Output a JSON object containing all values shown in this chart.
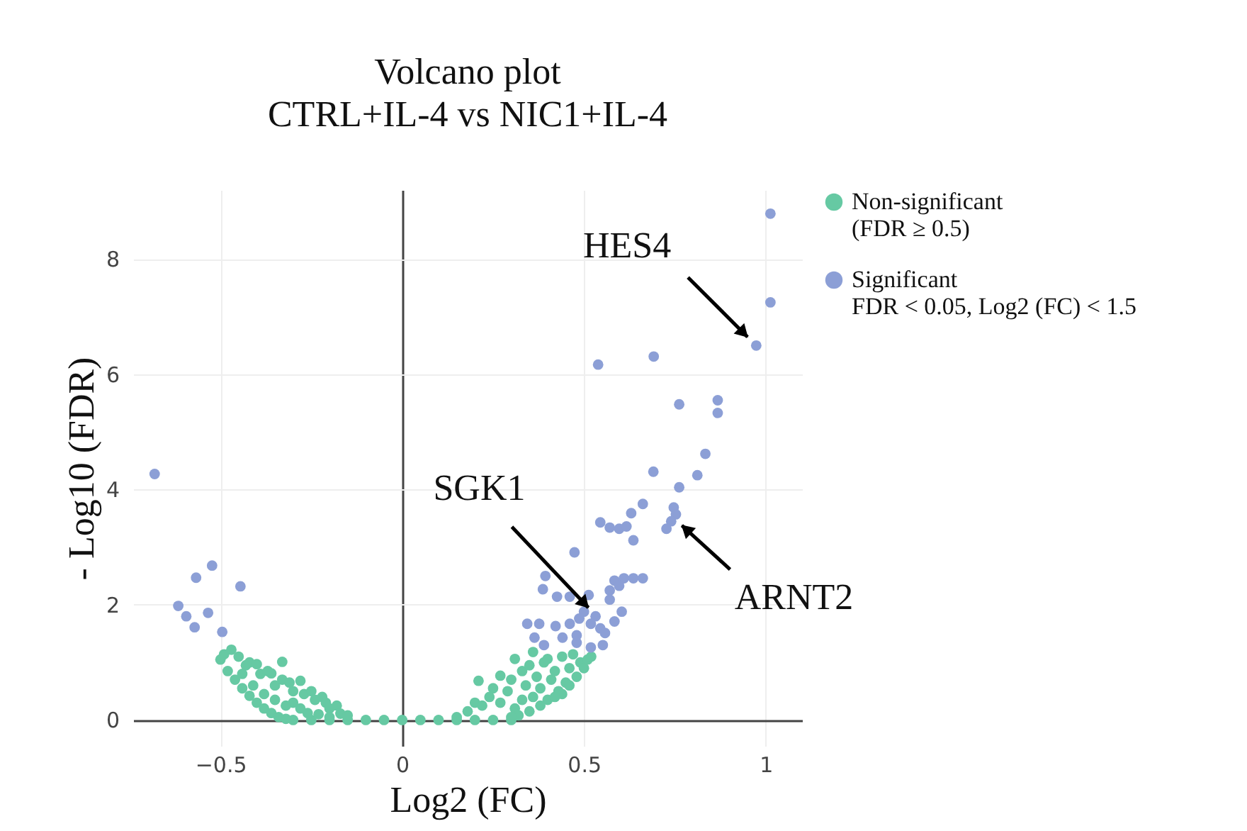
{
  "chart_data": {
    "type": "scatter",
    "title": "Volcano plot",
    "subtitle": "CTRL+IL-4 vs NIC1+IL-4",
    "xlabel": "Log2 (FC)",
    "ylabel": "- Log10 (FDR)",
    "xlim": [
      -0.74,
      1.1
    ],
    "ylim": [
      -0.45,
      9.2
    ],
    "xticks": [
      {
        "value": -0.5,
        "label": "−0.5"
      },
      0,
      0.5,
      1
    ],
    "yticks": [
      0,
      2,
      4,
      6,
      8
    ],
    "grid": true,
    "legend": "top right",
    "marker": "circle",
    "annotations": [
      {
        "text": "HES4",
        "x": 0.95,
        "y": 6.65
      },
      {
        "text": "SGK1",
        "x": 0.52,
        "y": 1.9
      },
      {
        "text": "ARNT2",
        "x": 0.75,
        "y": 3.5
      }
    ],
    "series": [
      {
        "name": "Non-significant\n(FDR ≥ 0.5)",
        "color": "#66c9a3",
        "x": [
          -0.3,
          -0.25,
          -0.2,
          -0.15,
          -0.1,
          -0.05,
          0,
          0.05,
          0.1,
          0.15,
          0.2,
          0.25,
          0.3,
          -0.5,
          -0.48,
          -0.46,
          -0.44,
          -0.42,
          -0.4,
          -0.38,
          -0.36,
          -0.34,
          -0.32,
          -0.49,
          -0.47,
          -0.45,
          -0.43,
          -0.42,
          -0.4,
          -0.39,
          -0.37,
          -0.36,
          -0.33,
          -0.35,
          -0.33,
          -0.31,
          -0.3,
          -0.28,
          -0.27,
          -0.25,
          -0.24,
          -0.22,
          -0.21,
          -0.2,
          -0.18,
          -0.17,
          -0.15,
          -0.3,
          -0.28,
          -0.26,
          -0.23,
          -0.2,
          -0.44,
          -0.41,
          -0.38,
          -0.35,
          -0.32,
          0.15,
          0.18,
          0.2,
          0.21,
          0.22,
          0.24,
          0.25,
          0.27,
          0.27,
          0.29,
          0.3,
          0.31,
          0.31,
          0.33,
          0.33,
          0.34,
          0.35,
          0.36,
          0.36,
          0.37,
          0.38,
          0.39,
          0.4,
          0.4,
          0.41,
          0.42,
          0.43,
          0.44,
          0.45,
          0.46,
          0.47,
          0.48,
          0.49,
          0.5,
          0.51,
          0.52,
          0.46,
          0.44,
          0.42,
          0.38,
          0.35,
          0.32,
          0.3
        ],
        "values": [
          0,
          0,
          0,
          0,
          0,
          0,
          0,
          0,
          0,
          0,
          0,
          0,
          0,
          1.05,
          0.85,
          0.7,
          0.55,
          0.42,
          0.3,
          0.2,
          0.12,
          0.05,
          0.02,
          1.14,
          1.22,
          1.1,
          0.95,
          1.0,
          0.97,
          0.8,
          0.85,
          0.81,
          1.01,
          0.6,
          0.7,
          0.65,
          0.5,
          0.68,
          0.45,
          0.5,
          0.35,
          0.4,
          0.3,
          0.2,
          0.25,
          0.11,
          0.08,
          0.3,
          0.2,
          0.12,
          0.1,
          0.05,
          0.8,
          0.6,
          0.45,
          0.35,
          0.25,
          0.05,
          0.15,
          0.3,
          0.68,
          0.25,
          0.4,
          0.55,
          0.77,
          0.3,
          0.5,
          0.7,
          1.06,
          0.2,
          0.35,
          0.85,
          0.6,
          0.95,
          1.18,
          0.4,
          0.75,
          0.55,
          1.0,
          1.06,
          0.35,
          0.7,
          0.85,
          0.5,
          1.1,
          0.65,
          0.9,
          1.14,
          0.75,
          1.0,
          0.9,
          1.05,
          1.1,
          0.6,
          0.45,
          0.4,
          0.25,
          0.15,
          0.08,
          0.05
        ]
      },
      {
        "name": "Significant\nFDR < 0.05, Log2 (FC) < 1.5",
        "color": "#8c9fd6",
        "x": [
          1.013,
          1.013,
          0.974,
          0.539,
          0.692,
          0.762,
          0.868,
          0.868,
          0.834,
          0.691,
          0.812,
          0.762,
          0.662,
          0.63,
          0.545,
          0.571,
          0.597,
          0.617,
          0.636,
          0.747,
          0.753,
          0.74,
          0.727,
          0.474,
          0.394,
          0.387,
          0.426,
          0.461,
          0.513,
          0.584,
          0.61,
          0.636,
          0.662,
          0.571,
          0.597,
          0.571,
          0.604,
          0.584,
          0.532,
          0.545,
          0.558,
          0.519,
          0.5,
          0.487,
          0.344,
          0.377,
          0.422,
          0.461,
          0.364,
          0.39,
          0.441,
          0.48,
          0.519,
          0.552,
          0.48,
          -0.681,
          -0.567,
          -0.523,
          -0.445,
          -0.616,
          -0.594,
          -0.534,
          -0.571,
          -0.495
        ],
        "values": [
          8.79,
          7.25,
          6.5,
          6.17,
          6.31,
          5.48,
          5.55,
          5.33,
          4.62,
          4.31,
          4.25,
          4.04,
          3.75,
          3.59,
          3.43,
          3.34,
          3.32,
          3.36,
          3.12,
          3.69,
          3.57,
          3.45,
          3.32,
          2.91,
          2.5,
          2.27,
          2.14,
          2.14,
          2.17,
          2.42,
          2.46,
          2.46,
          2.46,
          2.25,
          2.33,
          2.09,
          1.88,
          1.71,
          1.8,
          1.59,
          1.51,
          1.67,
          1.88,
          1.76,
          1.67,
          1.67,
          1.63,
          1.67,
          1.43,
          1.3,
          1.43,
          1.34,
          1.26,
          1.3,
          1.47,
          4.27,
          2.47,
          2.68,
          2.32,
          1.98,
          1.8,
          1.86,
          1.61,
          1.53
        ]
      }
    ]
  }
}
